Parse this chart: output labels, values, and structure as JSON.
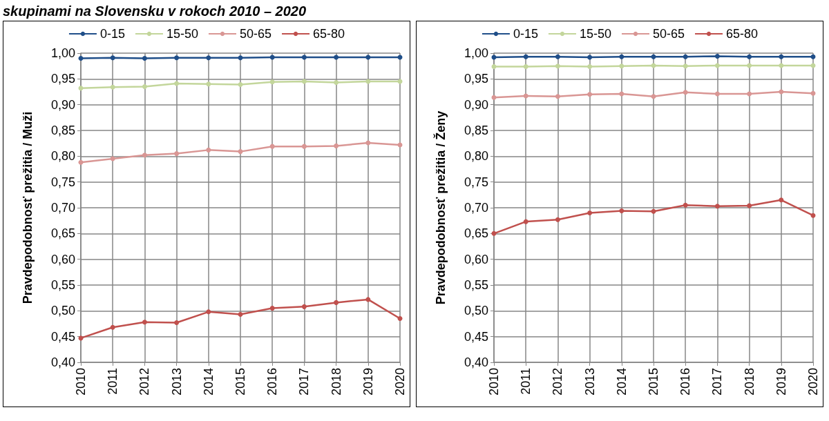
{
  "chart_data": [
    {
      "type": "line",
      "title": "skupinami na Slovensku v rokoch 2010 – 2020",
      "ylabel": "Pravdepodobnosť prežitia / Muži",
      "categories": [
        "2010",
        "2011",
        "2012",
        "2013",
        "2014",
        "2015",
        "2016",
        "2017",
        "2018",
        "2019",
        "2020"
      ],
      "series": [
        {
          "name": "0-15",
          "color": "#1f4e89",
          "values": [
            0.99,
            0.991,
            0.99,
            0.991,
            0.991,
            0.991,
            0.992,
            0.992,
            0.992,
            0.992,
            0.992
          ]
        },
        {
          "name": "15-50",
          "color": "#c3d69b",
          "values": [
            0.932,
            0.934,
            0.935,
            0.941,
            0.94,
            0.939,
            0.944,
            0.945,
            0.943,
            0.945,
            0.945
          ]
        },
        {
          "name": "50-65",
          "color": "#d99694",
          "values": [
            0.788,
            0.795,
            0.802,
            0.805,
            0.812,
            0.809,
            0.819,
            0.819,
            0.82,
            0.826,
            0.822
          ]
        },
        {
          "name": "65-80",
          "color": "#c0504d",
          "values": [
            0.447,
            0.468,
            0.478,
            0.477,
            0.498,
            0.493,
            0.505,
            0.508,
            0.516,
            0.522,
            0.485
          ]
        }
      ],
      "ylim": [
        0.4,
        1.0
      ],
      "yticks": [
        {
          "value": 0.4,
          "label": "0,40"
        },
        {
          "value": 0.45,
          "label": "0,45"
        },
        {
          "value": 0.5,
          "label": "0,50"
        },
        {
          "value": 0.55,
          "label": "0,55"
        },
        {
          "value": 0.6,
          "label": "0,60"
        },
        {
          "value": 0.65,
          "label": "0,65"
        },
        {
          "value": 0.7,
          "label": "0,70"
        },
        {
          "value": 0.75,
          "label": "0,75"
        },
        {
          "value": 0.8,
          "label": "0,80"
        },
        {
          "value": 0.85,
          "label": "0,85"
        },
        {
          "value": 0.9,
          "label": "0,90"
        },
        {
          "value": 0.95,
          "label": "0,95"
        },
        {
          "value": 1.0,
          "label": "1,00"
        }
      ],
      "grid": true,
      "legend": "top",
      "marker": "circle",
      "line_style": "solid"
    },
    {
      "type": "line",
      "ylabel": "Pravdepodobnosť prežitia / Ženy",
      "categories": [
        "2010",
        "2011",
        "2012",
        "2013",
        "2014",
        "2015",
        "2016",
        "2017",
        "2018",
        "2019",
        "2020"
      ],
      "series": [
        {
          "name": "0-15",
          "color": "#1f4e89",
          "values": [
            0.992,
            0.993,
            0.993,
            0.992,
            0.993,
            0.993,
            0.993,
            0.994,
            0.993,
            0.993,
            0.993
          ]
        },
        {
          "name": "15-50",
          "color": "#c3d69b",
          "values": [
            0.974,
            0.974,
            0.975,
            0.974,
            0.975,
            0.976,
            0.975,
            0.976,
            0.976,
            0.976,
            0.976
          ]
        },
        {
          "name": "50-65",
          "color": "#d99694",
          "values": [
            0.914,
            0.917,
            0.916,
            0.92,
            0.921,
            0.916,
            0.924,
            0.921,
            0.921,
            0.925,
            0.922
          ]
        },
        {
          "name": "65-80",
          "color": "#c0504d",
          "values": [
            0.65,
            0.673,
            0.677,
            0.69,
            0.694,
            0.693,
            0.705,
            0.703,
            0.704,
            0.715,
            0.685
          ]
        }
      ],
      "ylim": [
        0.4,
        1.0
      ],
      "yticks": [
        {
          "value": 0.4,
          "label": "0,40"
        },
        {
          "value": 0.45,
          "label": "0,45"
        },
        {
          "value": 0.5,
          "label": "0,50"
        },
        {
          "value": 0.55,
          "label": "0,55"
        },
        {
          "value": 0.6,
          "label": "0,60"
        },
        {
          "value": 0.65,
          "label": "0,65"
        },
        {
          "value": 0.7,
          "label": "0,70"
        },
        {
          "value": 0.75,
          "label": "0,75"
        },
        {
          "value": 0.8,
          "label": "0,80"
        },
        {
          "value": 0.85,
          "label": "0,85"
        },
        {
          "value": 0.9,
          "label": "0,90"
        },
        {
          "value": 0.95,
          "label": "0,95"
        },
        {
          "value": 1.0,
          "label": "1,00"
        }
      ],
      "grid": true,
      "legend": "top",
      "marker": "circle",
      "line_style": "solid"
    }
  ]
}
